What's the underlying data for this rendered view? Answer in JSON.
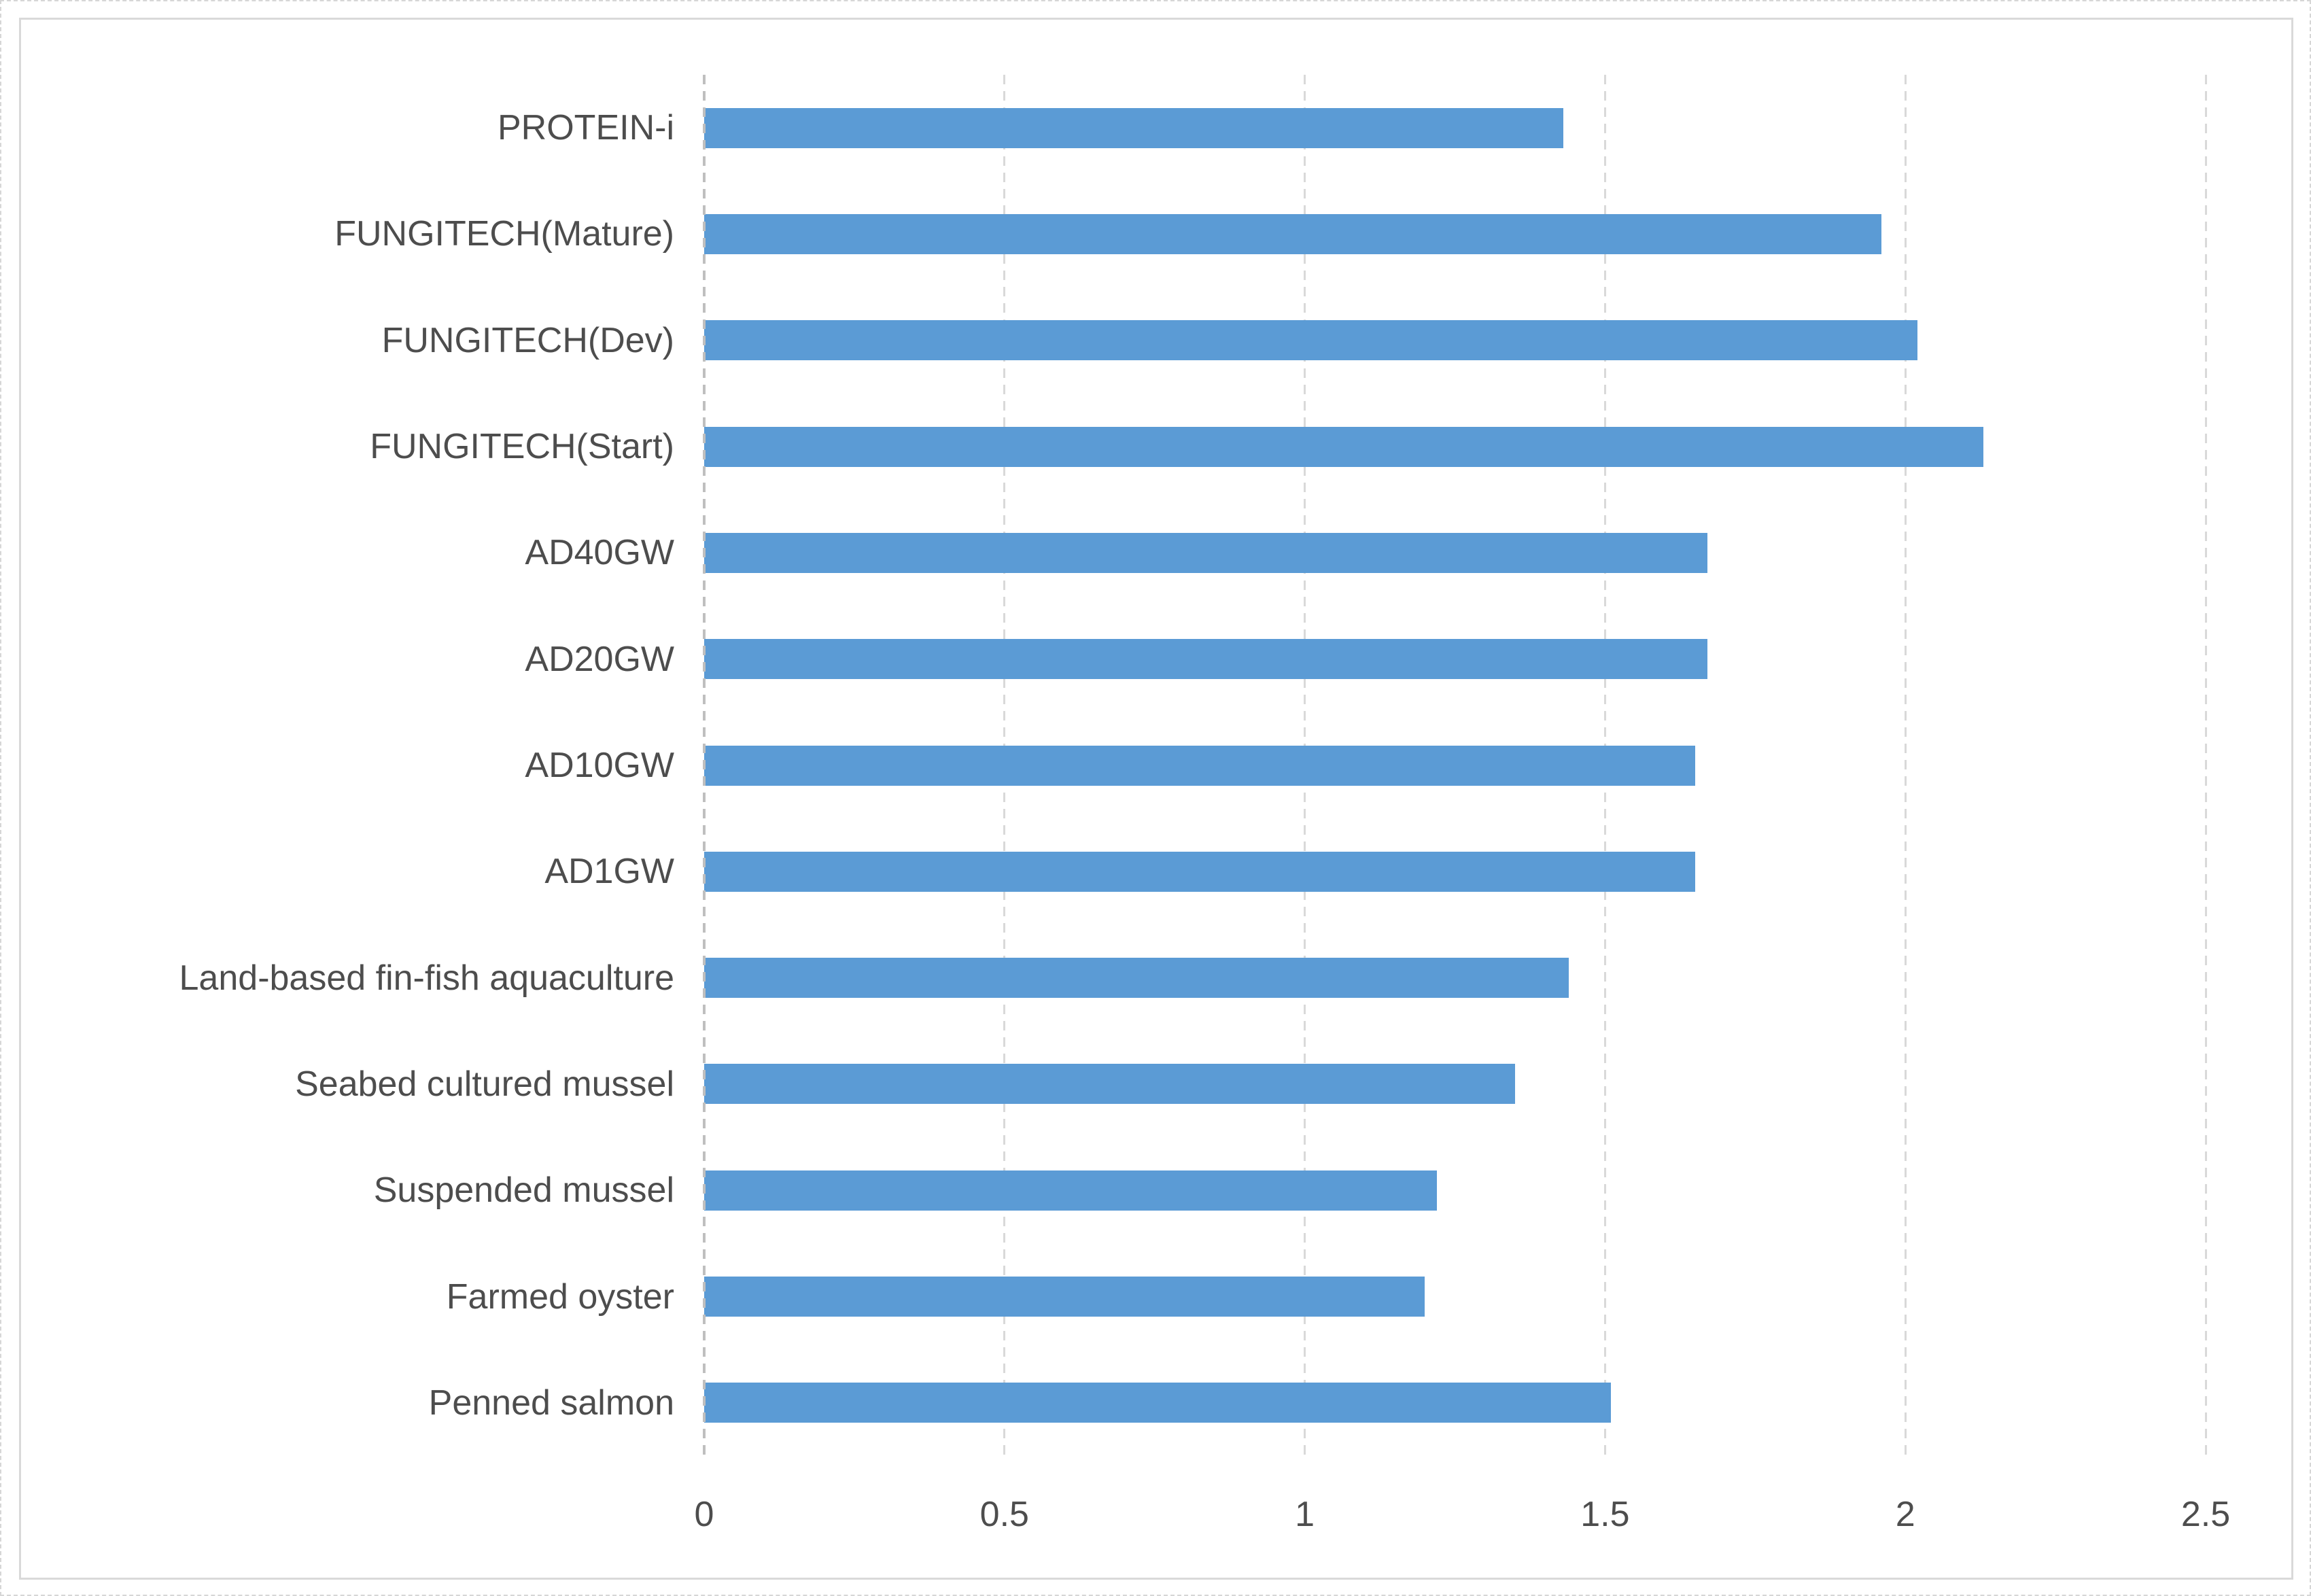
{
  "chart_data": {
    "type": "bar",
    "orientation": "horizontal",
    "title": "",
    "subtitle": "",
    "xlabel": "",
    "ylabel": "",
    "categories": [
      "PROTEIN-i",
      "FUNGITECH(Mature)",
      "FUNGITECH(Dev)",
      "FUNGITECH(Start)",
      "AD40GW",
      "AD20GW",
      "AD10GW",
      "AD1GW",
      "Land-based fin-fish aquaculture",
      "Seabed cultured mussel",
      "Suspended mussel",
      "Farmed oyster",
      "Penned salmon"
    ],
    "values": [
      1.43,
      1.96,
      2.02,
      2.13,
      1.67,
      1.67,
      1.65,
      1.65,
      1.44,
      1.35,
      1.22,
      1.2,
      1.51
    ],
    "xlim": [
      0,
      2.5
    ],
    "xticks": [
      0,
      0.5,
      1,
      1.5,
      2,
      2.5
    ],
    "xtick_labels": [
      "0",
      "0.5",
      "1",
      "1.5",
      "2",
      "2.5"
    ],
    "grid": "vertical-dashed",
    "legend": "none",
    "colors": {
      "bar": "#5B9BD5",
      "gridline": "#D9D9D9",
      "axis_line": "#BFBFBF",
      "tick_text": "#4D4D4D",
      "category_text": "#4D4D4D",
      "chart_border": "#D9D9D9"
    }
  }
}
